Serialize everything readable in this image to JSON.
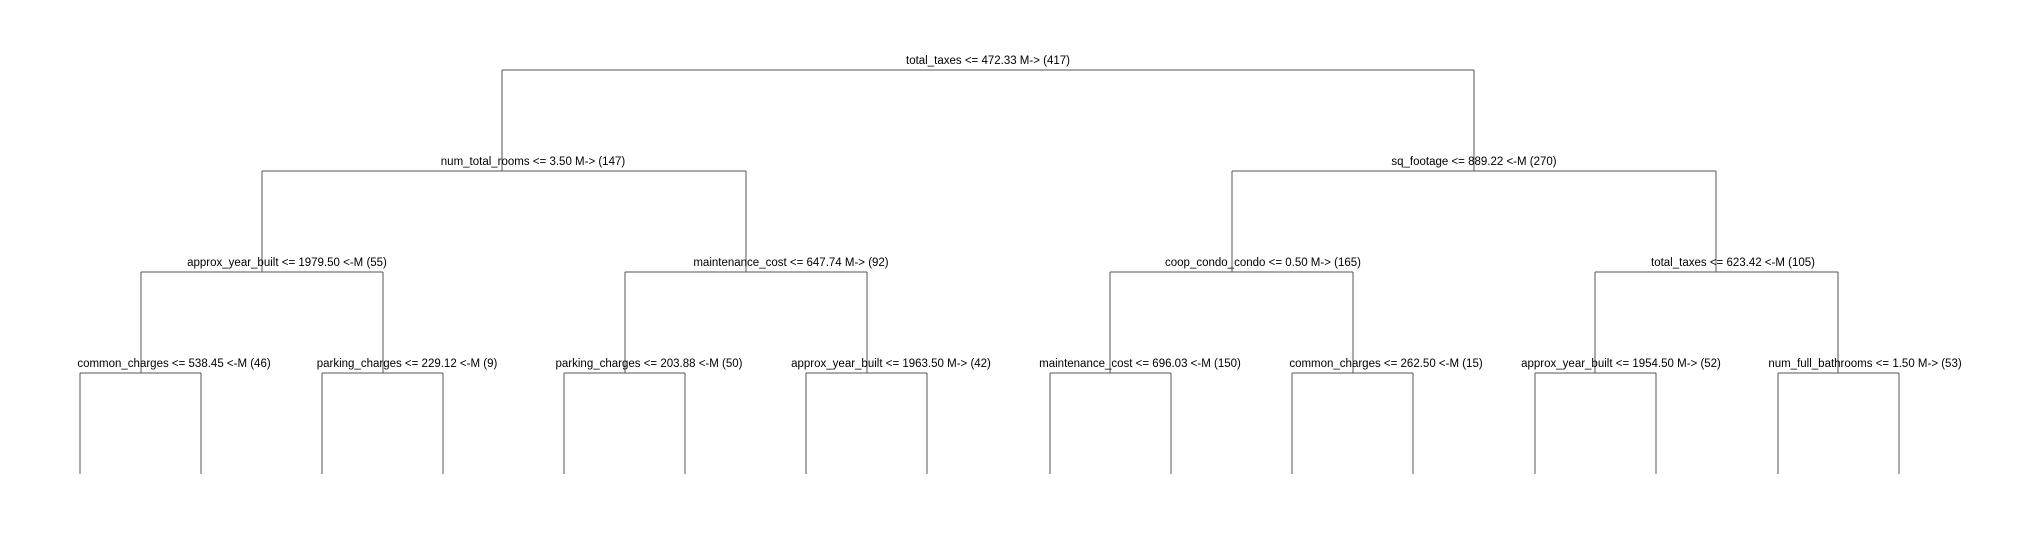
{
  "colors": {
    "line": "#555555",
    "text": "#000000",
    "background": "#ffffff"
  },
  "tree": {
    "root": "total_taxes <= 472.33 M-> (417)",
    "level1": [
      "num_total_rooms <= 3.50 M-> (147)",
      "sq_footage <= 889.22 <-M (270)"
    ],
    "level2": [
      "approx_year_built <= 1979.50 <-M (55)",
      "maintenance_cost <= 647.74 M-> (92)",
      "coop_condo_condo <= 0.50 M-> (165)",
      "total_taxes <= 623.42 <-M (105)"
    ],
    "level3": [
      "common_charges <= 538.45 <-M (46)",
      "parking_charges <= 229.12 <-M (9)",
      "parking_charges <= 203.88 <-M (50)",
      "approx_year_built <= 1963.50 M-> (42)",
      "maintenance_cost <= 696.03 <-M (150)",
      "common_charges <= 262.50 <-M (15)",
      "approx_year_built <= 1954.50 M-> (52)",
      "num_full_bathrooms <= 1.50 M-> (53)"
    ]
  }
}
